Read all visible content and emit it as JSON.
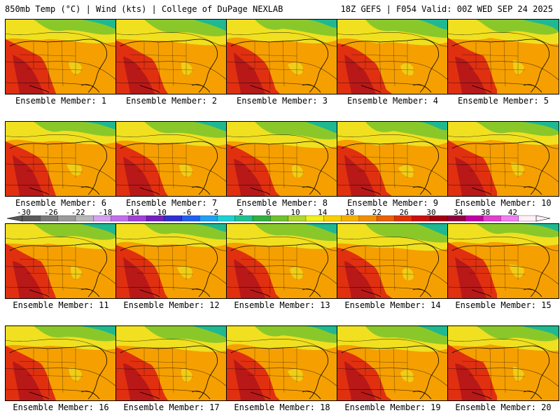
{
  "header": {
    "left": "850mb Temp (°C) | Wind (kts) | College of DuPage NEXLAB",
    "right": "18Z GEFS | F054 Valid: 00Z WED SEP 24 2025"
  },
  "member_label_prefix": "Ensemble Member: ",
  "members": [
    {
      "label": "Ensemble Member: 1",
      "number": 1
    },
    {
      "label": "Ensemble Member: 2",
      "number": 2
    },
    {
      "label": "Ensemble Member: 3",
      "number": 3
    },
    {
      "label": "Ensemble Member: 4",
      "number": 4
    },
    {
      "label": "Ensemble Member: 5",
      "number": 5
    },
    {
      "label": "Ensemble Member: 6",
      "number": 6
    },
    {
      "label": "Ensemble Member: 7",
      "number": 7
    },
    {
      "label": "Ensemble Member: 8",
      "number": 8
    },
    {
      "label": "Ensemble Member: 9",
      "number": 9
    },
    {
      "label": "Ensemble Member: 10",
      "number": 10
    },
    {
      "label": "Ensemble Member: 11",
      "number": 11
    },
    {
      "label": "Ensemble Member: 12",
      "number": 12
    },
    {
      "label": "Ensemble Member: 13",
      "number": 13
    },
    {
      "label": "Ensemble Member: 14",
      "number": 14
    },
    {
      "label": "Ensemble Member: 15",
      "number": 15
    },
    {
      "label": "Ensemble Member: 16",
      "number": 16
    },
    {
      "label": "Ensemble Member: 17",
      "number": 17
    },
    {
      "label": "Ensemble Member: 18",
      "number": 18
    },
    {
      "label": "Ensemble Member: 19",
      "number": 19
    },
    {
      "label": "Ensemble Member: 20",
      "number": 20
    }
  ],
  "colorbar": {
    "tick_labels": [
      "-30",
      "-26",
      "-22",
      "-18",
      "-14",
      "-10",
      "-6",
      "-2",
      "2",
      "6",
      "10",
      "14",
      "18",
      "22",
      "26",
      "30",
      "34",
      "38",
      "42"
    ],
    "colors": [
      "#5a5a5a",
      "#7a7a7a",
      "#9a9a9a",
      "#b8b8b8",
      "#d8a0f0",
      "#c070e8",
      "#a040d8",
      "#7020c0",
      "#3030d0",
      "#2060f0",
      "#20a0f0",
      "#20d0d0",
      "#20c090",
      "#30b040",
      "#70c030",
      "#b0d830",
      "#f0f020",
      "#f8d000",
      "#f8b000",
      "#f09000",
      "#e86000",
      "#e03000",
      "#c81010",
      "#a00010",
      "#900040",
      "#c000a0",
      "#e040d0",
      "#f080f0",
      "#fff0f8"
    ]
  },
  "map_colors": {
    "cold": "#1fb890",
    "cool": "#8ac82a",
    "mild": "#f0e020",
    "warm": "#f5a000",
    "hot": "#e03010",
    "veryhot": "#b81818",
    "lines": "#000000"
  }
}
